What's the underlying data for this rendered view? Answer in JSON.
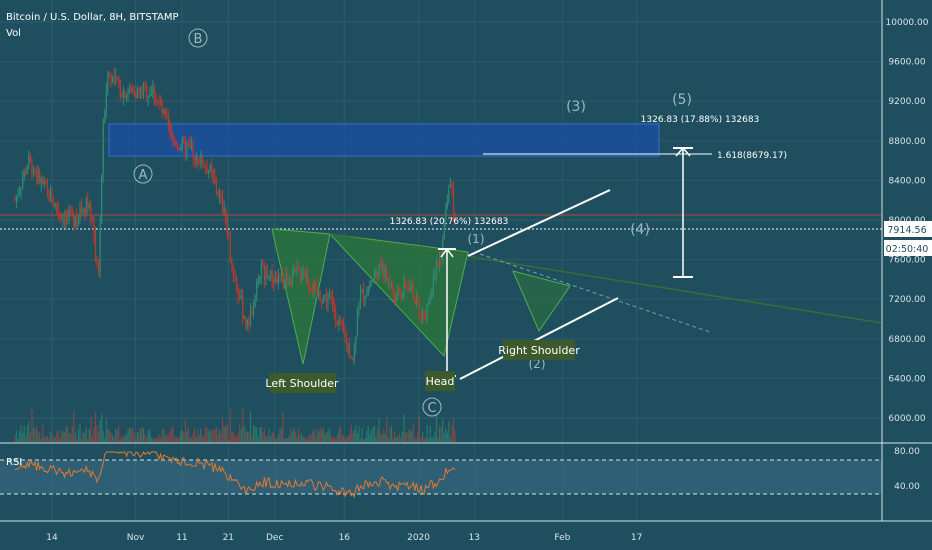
{
  "header": {
    "title": "Bitcoin / U.S. Dollar, 8H, BITSTAMP",
    "volume_label": "Vol"
  },
  "price_axis": {
    "ticks": [
      "10000.00",
      "9600.00",
      "9200.00",
      "8800.00",
      "8400.00",
      "8000.00",
      "7600.00",
      "7200.00",
      "6800.00",
      "6400.00",
      "6000.00"
    ]
  },
  "price_readout": {
    "last_price": "7914.56",
    "countdown": "02:50:40"
  },
  "rsi": {
    "label": "RSI",
    "ticks": [
      "80.00",
      "40.00"
    ]
  },
  "time_axis": {
    "ticks": [
      "14",
      "Nov",
      "11",
      "21",
      "Dec",
      "16",
      "2020",
      "13",
      "Feb",
      "17"
    ]
  },
  "waves": {
    "A": "A",
    "B": "B",
    "C": "C",
    "w1": "(1)",
    "w2": "(2)",
    "w3": "(3)",
    "w4": "(4)",
    "w5": "(5)"
  },
  "pattern_labels": {
    "left_shoulder": "Left Shoulder",
    "head": "Head",
    "right_shoulder": "Right Shoulder"
  },
  "measurements": {
    "upper": "1326.83 (17.88%) 132683",
    "middle": "1326.83 (20.76%) 132683",
    "fib": "1.618(8679.17)"
  },
  "colors": {
    "background": "#1f4f5e",
    "up": "#2f8a72",
    "down": "#c0392b",
    "zone": "#1c4ea0",
    "triangle": "#2e7d32",
    "pattern_label_bg": "#3d5a2c",
    "rsi_band": "#3b6a86"
  },
  "chart_data": {
    "type": "candlestick",
    "title": "Bitcoin / U.S. Dollar, 8H, BITSTAMP",
    "ylim": [
      5800,
      10200
    ],
    "approx_close_path": [
      {
        "x": "Oct 06",
        "y": 8200
      },
      {
        "x": "Oct 09",
        "y": 8600
      },
      {
        "x": "Oct 12",
        "y": 8350
      },
      {
        "x": "Oct 16",
        "y": 8050
      },
      {
        "x": "Oct 19",
        "y": 8000
      },
      {
        "x": "Oct 22",
        "y": 8200
      },
      {
        "x": "Oct 24",
        "y": 7450
      },
      {
        "x": "Oct 25",
        "y": 8900
      },
      {
        "x": "Oct 26",
        "y": 9500
      },
      {
        "x": "Oct 29",
        "y": 9300
      },
      {
        "x": "Nov 05",
        "y": 9300
      },
      {
        "x": "Nov 09",
        "y": 8800
      },
      {
        "x": "Nov 14",
        "y": 8650
      },
      {
        "x": "Nov 17",
        "y": 8500
      },
      {
        "x": "Nov 20",
        "y": 8100
      },
      {
        "x": "Nov 22",
        "y": 7500
      },
      {
        "x": "Nov 25",
        "y": 6900
      },
      {
        "x": "Nov 28",
        "y": 7500
      },
      {
        "x": "Dec 01",
        "y": 7400
      },
      {
        "x": "Dec 04",
        "y": 7400
      },
      {
        "x": "Dec 07",
        "y": 7500
      },
      {
        "x": "Dec 10",
        "y": 7250
      },
      {
        "x": "Dec 13",
        "y": 7200
      },
      {
        "x": "Dec 16",
        "y": 6800
      },
      {
        "x": "Dec 18",
        "y": 6600
      },
      {
        "x": "Dec 19",
        "y": 7200
      },
      {
        "x": "Dec 21",
        "y": 7300
      },
      {
        "x": "Dec 24",
        "y": 7550
      },
      {
        "x": "Dec 27",
        "y": 7200
      },
      {
        "x": "Dec 30",
        "y": 7350
      },
      {
        "x": "Jan 02",
        "y": 7000
      },
      {
        "x": "Jan 04",
        "y": 7350
      },
      {
        "x": "Jan 06",
        "y": 7700
      },
      {
        "x": "Jan 07",
        "y": 8200
      },
      {
        "x": "Jan 08",
        "y": 8400
      },
      {
        "x": "Jan 09",
        "y": 7914.56
      }
    ],
    "last_price": 7914.56,
    "rsi_levels": [
      80,
      40
    ]
  }
}
